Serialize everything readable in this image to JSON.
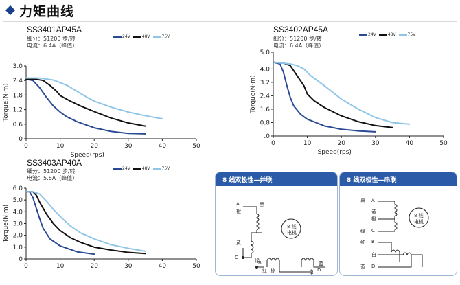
{
  "page": {
    "title": "力矩曲线"
  },
  "colors": {
    "v24": "#2b4a94",
    "v48": "#111111",
    "v75": "#8fc6e8",
    "header_blue": "#2a5aa8",
    "diamond": "#1a3f8f"
  },
  "chart_data": [
    {
      "type": "line",
      "model": "SS3401AP45A",
      "spec_line1": "细分：51200 步/转",
      "spec_line2": "电流：6.4A（峰值）",
      "xlabel": "Speed(rps)",
      "ylabel": "Torque(N·m)",
      "xlim": [
        0,
        50
      ],
      "ylim": [
        0,
        3.0
      ],
      "xticks": [
        "0",
        "10",
        "20",
        "30",
        "40",
        "50"
      ],
      "yticks": [
        "0",
        "0.6",
        "1.2",
        "1.8",
        "2.4",
        "3.0"
      ],
      "grid": false,
      "legend_position": "top-right",
      "series": [
        {
          "name": "24V",
          "color": "#2b4a94",
          "x": [
            0,
            2,
            4,
            6,
            8,
            10,
            12,
            15,
            20,
            25,
            30,
            35
          ],
          "y": [
            2.45,
            2.4,
            2.1,
            1.7,
            1.35,
            1.1,
            0.9,
            0.7,
            0.45,
            0.3,
            0.22,
            0.2
          ]
        },
        {
          "name": "48V",
          "color": "#111111",
          "x": [
            0,
            3,
            5,
            7,
            9,
            10,
            13,
            16,
            20,
            25,
            30,
            35
          ],
          "y": [
            2.45,
            2.45,
            2.4,
            2.2,
            1.95,
            1.78,
            1.55,
            1.35,
            1.12,
            0.85,
            0.65,
            0.52
          ]
        },
        {
          "name": "75V",
          "color": "#8fc6e8",
          "x": [
            0,
            4,
            8,
            12,
            15,
            18,
            20,
            25,
            30,
            35,
            40
          ],
          "y": [
            2.5,
            2.5,
            2.42,
            2.2,
            1.95,
            1.7,
            1.55,
            1.3,
            1.1,
            0.95,
            0.82
          ]
        }
      ]
    },
    {
      "type": "line",
      "model": "SS3402AP45A",
      "spec_line1": "细分：51200 步/转",
      "spec_line2": "电流：6.4A（峰值）",
      "xlabel": "Speed(rps)",
      "ylabel": "Torque(N·m)",
      "xlim": [
        0,
        50
      ],
      "ylim": [
        0,
        5.0
      ],
      "xticks": [
        "0",
        "10",
        "20",
        "30",
        "40",
        "50"
      ],
      "yticks": [
        ".0",
        "0.8",
        "1.6",
        "2.4",
        "3.2",
        "4.0",
        "5.0"
      ],
      "ytick_values": [
        0,
        0.8,
        1.6,
        2.4,
        3.2,
        4.0,
        5.0
      ],
      "grid": false,
      "legend_position": "top-right",
      "series": [
        {
          "name": "24V",
          "color": "#2b4a94",
          "x": [
            0,
            2,
            3,
            4,
            5,
            6,
            8,
            10,
            15,
            20,
            25,
            30
          ],
          "y": [
            4.4,
            4.3,
            3.8,
            3.0,
            2.3,
            1.8,
            1.3,
            1.0,
            0.6,
            0.4,
            0.3,
            0.25
          ]
        },
        {
          "name": "48V",
          "color": "#111111",
          "x": [
            0,
            3,
            5,
            7,
            9,
            10,
            12,
            15,
            20,
            25,
            30,
            35
          ],
          "y": [
            4.4,
            4.35,
            4.2,
            3.6,
            3.0,
            2.5,
            2.1,
            1.7,
            1.2,
            0.85,
            0.62,
            0.5
          ]
        },
        {
          "name": "75V",
          "color": "#8fc6e8",
          "x": [
            0,
            5,
            7,
            9,
            11,
            15,
            20,
            25,
            30,
            35,
            40
          ],
          "y": [
            4.4,
            4.3,
            4.2,
            4.0,
            3.6,
            3.0,
            2.2,
            1.6,
            1.1,
            0.8,
            0.7
          ]
        }
      ]
    },
    {
      "type": "line",
      "model": "SS3403AP40A",
      "spec_line1": "细分：51200 步/转",
      "spec_line2": "电流：5.6A（峰值）",
      "xlabel": "",
      "ylabel": "Torque(N·m)",
      "xlim": [
        0,
        50
      ],
      "ylim": [
        0,
        6.0
      ],
      "xticks": [
        "0",
        "10",
        "20",
        "30",
        "40",
        "50"
      ],
      "yticks": [
        "0",
        "1.0",
        "2.0",
        "3.0",
        "4.0",
        "5.0",
        "6.0"
      ],
      "grid": false,
      "legend_position": "top-right",
      "series": [
        {
          "name": "24V",
          "color": "#2b4a94",
          "x": [
            0,
            1,
            2,
            3,
            4,
            5,
            7,
            10,
            15,
            20
          ],
          "y": [
            5.7,
            5.7,
            5.2,
            4.3,
            3.4,
            2.6,
            1.7,
            1.1,
            0.6,
            0.4
          ]
        },
        {
          "name": "48V",
          "color": "#111111",
          "x": [
            0,
            2,
            3,
            4,
            6,
            8,
            10,
            13,
            16,
            20,
            25,
            30,
            35
          ],
          "y": [
            5.7,
            5.7,
            5.4,
            4.8,
            3.8,
            3.0,
            2.4,
            1.8,
            1.4,
            1.0,
            0.75,
            0.55,
            0.45
          ]
        },
        {
          "name": "75V",
          "color": "#8fc6e8",
          "x": [
            0,
            2,
            4,
            6,
            8,
            10,
            13,
            16,
            20,
            25,
            30,
            35
          ],
          "y": [
            5.7,
            5.7,
            5.5,
            4.9,
            4.2,
            3.6,
            2.8,
            2.2,
            1.7,
            1.2,
            0.9,
            0.65
          ]
        }
      ]
    }
  ],
  "wiring": {
    "parallel": {
      "title": "8 线双极性—并联",
      "motor_label": "8 线",
      "motor_label2": "电机",
      "labels": {
        "a": "A",
        "black": "黑",
        "orange": "橙",
        "yellow": "黄",
        "c": "C",
        "green": "绿",
        "red": "红",
        "b": "B",
        "white": "白",
        "d": "D",
        "blue": "蓝",
        "brown": "棕"
      }
    },
    "series": {
      "title": "8 线双极性—串联",
      "motor_label": "8 线",
      "motor_label2": "电机",
      "labels": {
        "black": "黑",
        "a": "A",
        "yellow": "黄",
        "orange": "橙",
        "green": "绿",
        "c": "C",
        "red": "红",
        "b": "B",
        "white": "白",
        "blue": "蓝",
        "d": "D"
      }
    }
  }
}
